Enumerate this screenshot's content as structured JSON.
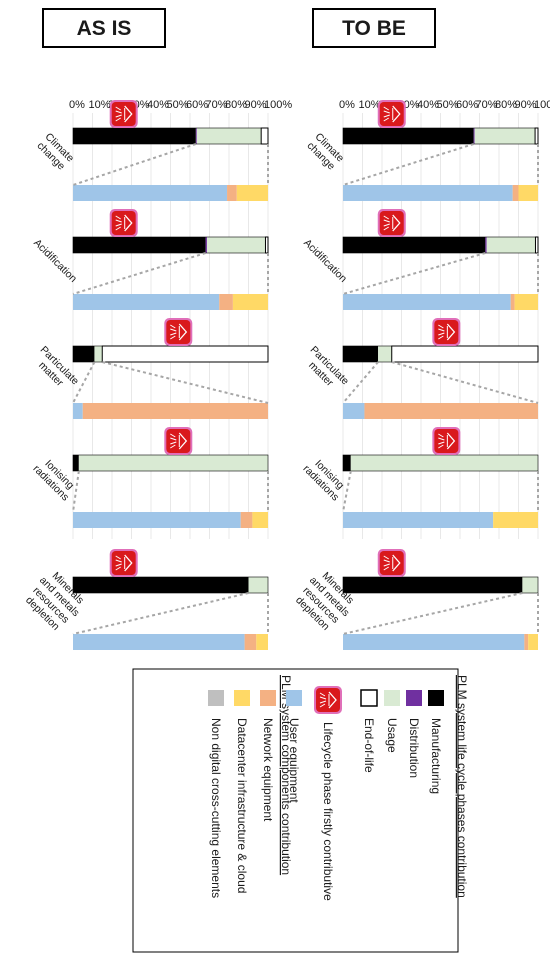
{
  "chart_data": [
    {
      "type": "bar",
      "title": "AS IS",
      "stacked": true,
      "orientation": "horizontal (figure rotated 90°)",
      "xlim": [
        0,
        100
      ],
      "ticks": [
        "0%",
        "10%",
        "20%",
        "30%",
        "40%",
        "50%",
        "60%",
        "70%",
        "80%",
        "90%",
        "100%"
      ],
      "categories": [
        "Climate change",
        "Acidification",
        "Particulate matter",
        "Ionising radiations",
        "Minerals and metals resources depletion"
      ],
      "lifecycle_phases": {
        "series": [
          {
            "name": "Manufacturing",
            "values": [
              67,
              73,
              18,
              4,
              92
            ]
          },
          {
            "name": "Distribution",
            "values": [
              0.5,
              0.7,
              0,
              0,
              0
            ]
          },
          {
            "name": "Usage",
            "values": [
              31,
              25,
              7,
              96,
              8
            ]
          },
          {
            "name": "End-of-life",
            "values": [
              1.5,
              1.3,
              75,
              0,
              0
            ]
          }
        ],
        "firstly_contributive_marker": [
          25,
          25,
          53,
          53,
          25
        ]
      },
      "system_components": {
        "series": [
          {
            "name": "User equipment",
            "values": [
              87,
              86,
              11,
              77,
              93
            ]
          },
          {
            "name": "Network equipment",
            "values": [
              3,
              2,
              89,
              0,
              2
            ]
          },
          {
            "name": "Datacenter infrastructure & cloud",
            "values": [
              10,
              12,
              0,
              23,
              5
            ]
          },
          {
            "name": "Non digital cross-cutting elements",
            "values": [
              0,
              0,
              0,
              0,
              0
            ]
          }
        ]
      }
    },
    {
      "type": "bar",
      "title": "TO BE",
      "stacked": true,
      "orientation": "horizontal (figure rotated 90°)",
      "xlim": [
        0,
        100
      ],
      "ticks": [
        "0%",
        "10%",
        "20%",
        "30%",
        "40%",
        "50%",
        "60%",
        "70%",
        "80%",
        "90%",
        "100%"
      ],
      "categories": [
        "Climate change",
        "Acidification",
        "Particulate matter",
        "Ionising radiations",
        "Minerals and metals resources depletion"
      ],
      "lifecycle_phases": {
        "series": [
          {
            "name": "Manufacturing",
            "values": [
              63,
              68,
              11,
              3,
              90
            ]
          },
          {
            "name": "Distribution",
            "values": [
              0.5,
              0.7,
              0,
              0,
              0
            ]
          },
          {
            "name": "Usage",
            "values": [
              33,
              30,
              4,
              97,
              10
            ]
          },
          {
            "name": "End-of-life",
            "values": [
              3.5,
              1.3,
              85,
              0,
              0
            ]
          }
        ],
        "firstly_contributive_marker": [
          26,
          26,
          54,
          54,
          26
        ]
      },
      "system_components": {
        "series": [
          {
            "name": "User equipment",
            "values": [
              79,
              75,
              5,
              86,
              88
            ]
          },
          {
            "name": "Network equipment",
            "values": [
              5,
              7,
              95,
              6,
              6
            ]
          },
          {
            "name": "Datacenter infrastructure & cloud",
            "values": [
              16,
              18,
              0,
              8,
              6
            ]
          },
          {
            "name": "Non digital cross-cutting elements",
            "values": [
              0,
              0,
              0,
              0,
              0
            ]
          }
        ]
      }
    }
  ],
  "category_labels": [
    [
      "Climate",
      "change"
    ],
    [
      "Acidification"
    ],
    [
      "Particulate",
      "matter"
    ],
    [
      "Ionising",
      "radiations"
    ],
    [
      "Minerals",
      "and metals",
      "resources",
      "depletion"
    ]
  ],
  "colors": {
    "manufacturing": "#000000",
    "distribution": "#7030a0",
    "usage": "#d9ead3",
    "end_of_life": "#ffffff",
    "user_equipment": "#9fc5e8",
    "network_equipment": "#f4b183",
    "datacenter": "#ffd966",
    "non_digital": "#bfbfbf",
    "marker_fill": "#d9191c",
    "marker_border": "#e06fb9"
  },
  "legend": {
    "group1_title": "PLM system life cycle phases contribution",
    "group2_title": "PLM system components contribution",
    "items": [
      {
        "label": "Manufacturing",
        "color": "#000000",
        "kind": "swatch"
      },
      {
        "label": "Distribution",
        "color": "#7030a0",
        "kind": "swatch"
      },
      {
        "label": "Usage",
        "color": "#d9ead3",
        "kind": "swatch"
      },
      {
        "label": "End-of-life",
        "color": "#ffffff",
        "kind": "outline"
      },
      {
        "label": "Lifecycle phase firstly contributive",
        "color": "#d9191c",
        "kind": "marker"
      },
      {
        "label": "User equipment",
        "color": "#9fc5e8",
        "kind": "swatch"
      },
      {
        "label": "Network equipment",
        "color": "#f4b183",
        "kind": "swatch"
      },
      {
        "label": "Datacenter infrastructure & cloud",
        "color": "#ffd966",
        "kind": "swatch"
      },
      {
        "label": "Non digital cross-cutting elements",
        "color": "#bfbfbf",
        "kind": "swatch"
      }
    ]
  }
}
